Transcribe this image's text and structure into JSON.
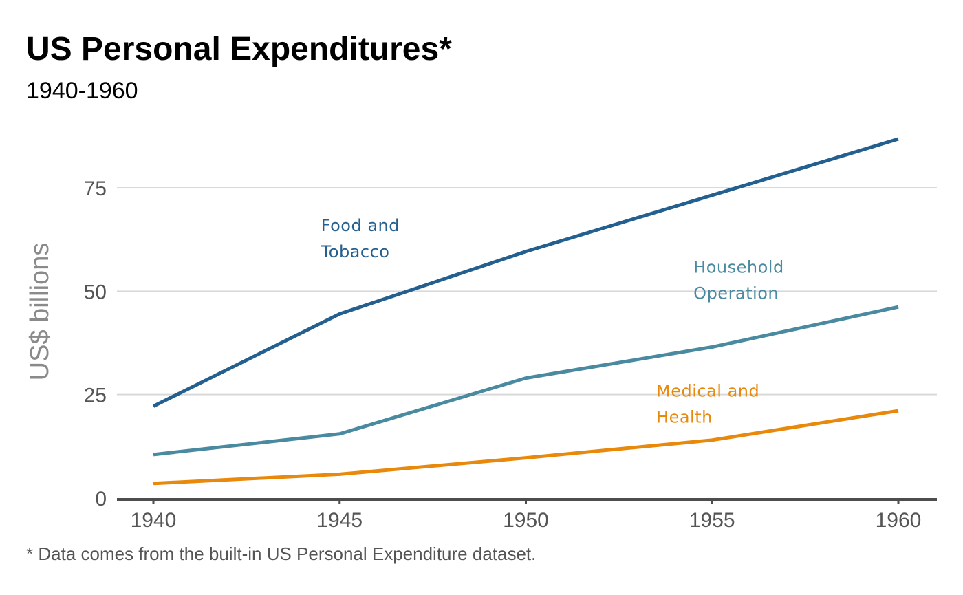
{
  "chart_data": {
    "type": "line",
    "title": "US Personal Expenditures*",
    "subtitle": "1940-1960",
    "ylabel": "US$ billions",
    "xlabel": "",
    "caption": "* Data comes from the built-in US Personal Expenditure dataset.",
    "x": [
      1940,
      1945,
      1950,
      1955,
      1960
    ],
    "x_ticks": [
      "1940",
      "1945",
      "1950",
      "1955",
      "1960"
    ],
    "y_ticks": [
      0,
      25,
      50,
      75
    ],
    "ylim": [
      0,
      90
    ],
    "grid": true,
    "legend": "none",
    "series": [
      {
        "name": "Food and Tobacco",
        "label_lines": [
          "Food and",
          "Tobacco"
        ],
        "values": [
          22.2,
          44.5,
          59.6,
          73.2,
          86.8
        ],
        "color": "#235f8f",
        "label_at": [
          1944.5,
          64.5
        ]
      },
      {
        "name": "Household Operation",
        "label_lines": [
          "Household",
          "Operation"
        ],
        "values": [
          10.5,
          15.5,
          29.0,
          36.5,
          46.2
        ],
        "color": "#4a8aa0",
        "label_at": [
          1954.5,
          54.5
        ]
      },
      {
        "name": "Medical and Health",
        "label_lines": [
          "Medical and",
          "Health"
        ],
        "values": [
          3.53,
          5.76,
          9.71,
          14.0,
          21.1
        ],
        "color": "#e8890c",
        "label_at": [
          1953.5,
          24.5
        ]
      }
    ]
  }
}
